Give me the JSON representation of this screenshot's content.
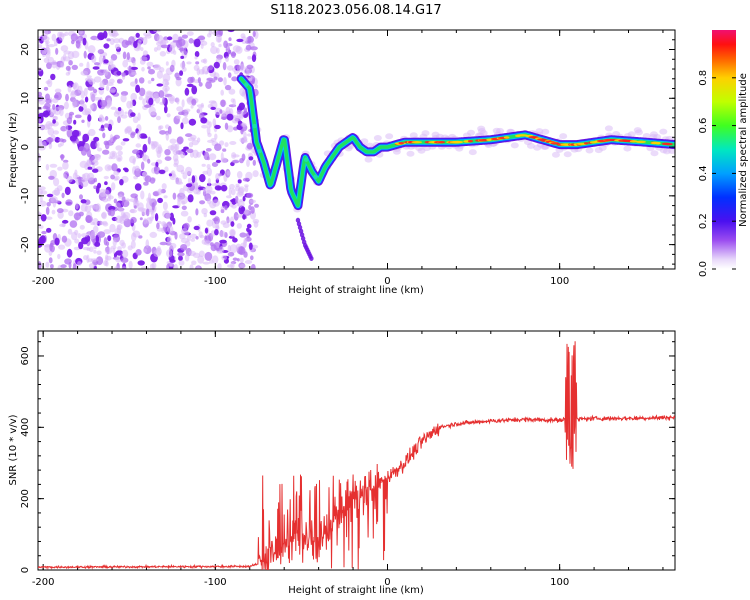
{
  "title": "S118.2023.056.08.14.G17",
  "chart_data": [
    {
      "type": "heatmap",
      "xlabel": "Height of straight line (km)",
      "ylabel": "Frequency (Hz)",
      "xlim": [
        -203,
        167
      ],
      "ylim": [
        -25,
        24
      ],
      "xticks": [
        -200,
        -100,
        0,
        100
      ],
      "yticks": [
        -20,
        -10,
        0,
        10,
        20
      ],
      "colorbar": {
        "label": "Normalized spectral amplitude",
        "range": [
          0,
          1
        ],
        "ticks": [
          "0.0",
          "0.2",
          "0.4",
          "0.6",
          "0.8"
        ],
        "tick_values": [
          0.0,
          0.2,
          0.4,
          0.6,
          0.8
        ]
      },
      "noise_region": {
        "x_range": [
          -203,
          -80
        ],
        "y_range": [
          -25,
          24
        ]
      },
      "ridge": {
        "x": [
          -85,
          -80,
          -76,
          -72,
          -68,
          -64,
          -60,
          -56,
          -52,
          -48,
          -44,
          -40,
          -36,
          -32,
          -28,
          -24,
          -20,
          -16,
          -12,
          -8,
          -4,
          0,
          10,
          20,
          40,
          60,
          80,
          90,
          100,
          110,
          130,
          150,
          167
        ],
        "y": [
          14,
          12,
          1,
          -3,
          -8,
          -3,
          2,
          -9,
          -12,
          -2,
          -5,
          -7,
          -4,
          -2,
          0,
          1,
          2,
          0,
          -1,
          -1,
          0,
          0,
          1,
          1,
          1,
          1.5,
          2.5,
          1.5,
          0.5,
          0.5,
          1.5,
          1,
          0.5
        ]
      },
      "tail": {
        "x": [
          -52,
          -48,
          -44
        ],
        "y": [
          -15,
          -20,
          -23
        ]
      }
    },
    {
      "type": "line",
      "xlabel": "Height of straight line (km)",
      "ylabel": "SNR (10 * v/v)",
      "xlim": [
        -203,
        167
      ],
      "ylim": [
        0,
        670
      ],
      "xticks": [
        -200,
        -100,
        0,
        100
      ],
      "yticks": [
        0,
        200,
        400,
        600
      ],
      "color": "#e53030",
      "profile": {
        "x": [
          -203,
          -80,
          -70,
          -60,
          -50,
          -40,
          -30,
          -20,
          -10,
          0,
          10,
          20,
          30,
          40,
          60,
          80,
          100,
          120,
          140,
          167
        ],
        "y": [
          8,
          10,
          25,
          90,
          100,
          70,
          150,
          200,
          230,
          260,
          300,
          360,
          400,
          410,
          418,
          422,
          420,
          425,
          425,
          428
        ]
      }
    }
  ]
}
